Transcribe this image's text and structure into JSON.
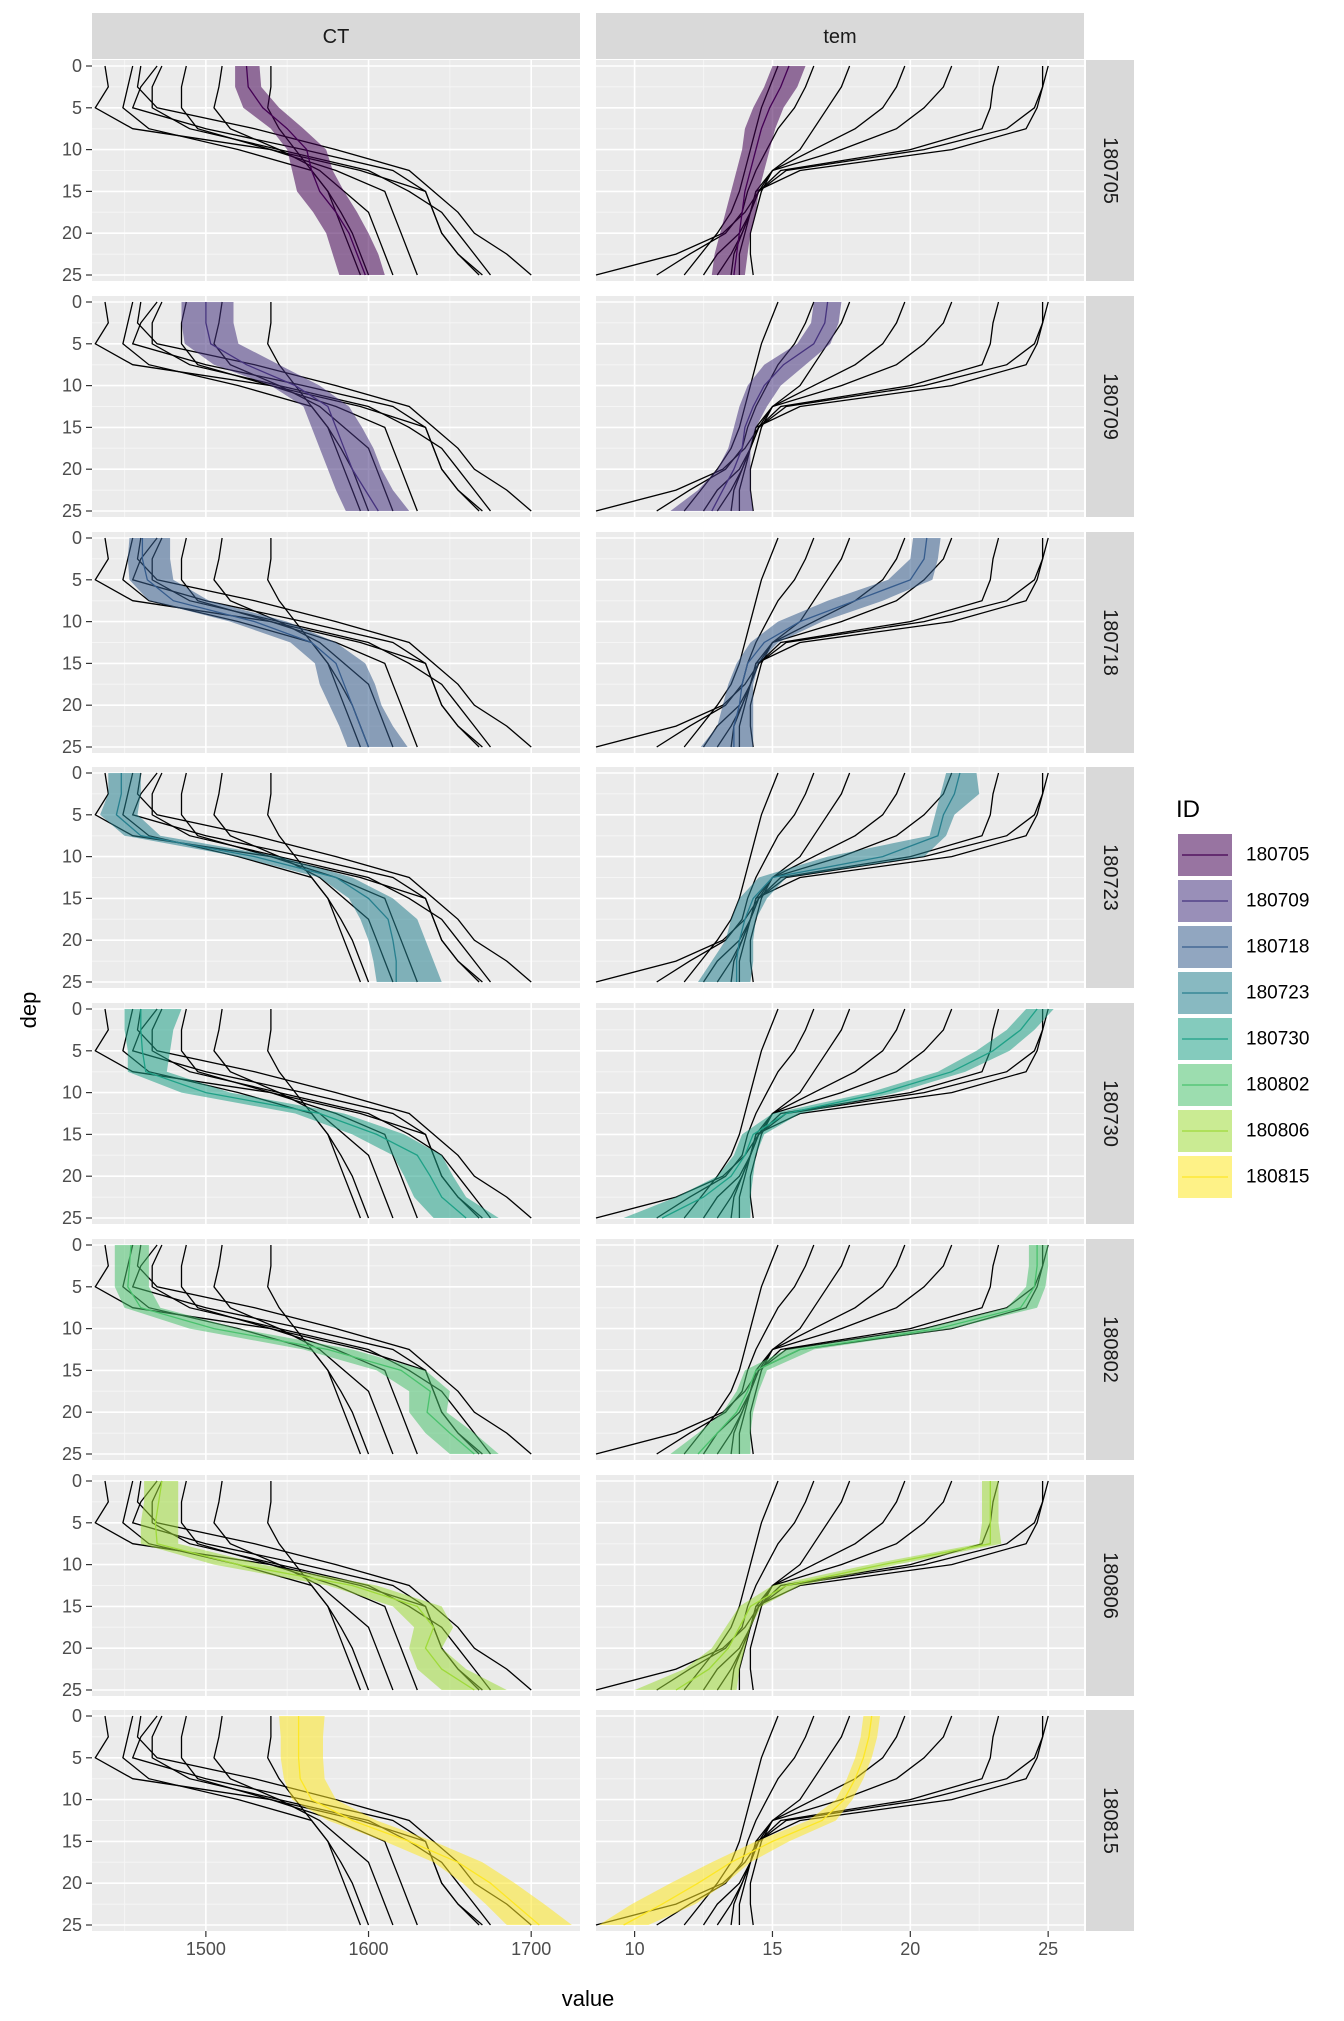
{
  "chart_data": {
    "type": "line",
    "subtype": "faceted depth profiles with ribbon bands",
    "xlabel": "value",
    "ylabel": "dep",
    "column_facets": [
      "CT",
      "tem"
    ],
    "row_facets": [
      "180705",
      "180709",
      "180718",
      "180723",
      "180730",
      "180802",
      "180806",
      "180815"
    ],
    "y_reversed": true,
    "ylim": [
      25,
      0
    ],
    "y_ticks": [
      0,
      5,
      10,
      15,
      20,
      25
    ],
    "x_axes": {
      "CT": {
        "xlim": [
          1430,
          1730
        ],
        "ticks": [
          1500,
          1600,
          1700
        ]
      },
      "tem": {
        "xlim": [
          8.6,
          26.3
        ],
        "ticks": [
          10,
          15,
          20,
          25
        ]
      }
    },
    "legend": {
      "title": "ID",
      "position": "right",
      "entries": [
        "180705",
        "180709",
        "180718",
        "180723",
        "180730",
        "180802",
        "180806",
        "180815"
      ]
    },
    "colors": {
      "180705": "#440154",
      "180709": "#46337E",
      "180718": "#365C8D",
      "180723": "#277F8E",
      "180730": "#1FA187",
      "180802": "#4AC16D",
      "180806": "#9FDA3A",
      "180815": "#FDE725"
    },
    "depths": [
      0,
      2.5,
      5,
      7.5,
      10,
      12.5,
      15,
      17.5,
      20,
      22.5,
      25
    ],
    "series": [
      {
        "name": "180705",
        "CT": {
          "mean": [
            1525,
            1526,
            1535,
            1550,
            1562,
            1565,
            1570,
            1580,
            1588,
            1593,
            1598
          ],
          "lower": [
            1518,
            1518,
            1523,
            1540,
            1550,
            1553,
            1556,
            1566,
            1574,
            1578,
            1582
          ],
          "upper": [
            1533,
            1534,
            1545,
            1560,
            1574,
            1578,
            1585,
            1593,
            1600,
            1606,
            1610
          ]
        },
        "tem": {
          "mean": [
            15.6,
            15.3,
            14.9,
            14.6,
            14.4,
            14.2,
            14.0,
            13.9,
            13.8,
            13.7,
            13.6
          ],
          "lower": [
            15.0,
            14.7,
            14.3,
            14.0,
            13.9,
            13.7,
            13.5,
            13.3,
            13.1,
            12.9,
            12.8
          ],
          "upper": [
            16.2,
            15.9,
            15.4,
            15.1,
            14.9,
            14.7,
            14.5,
            14.4,
            14.2,
            14.1,
            14.0
          ]
        }
      },
      {
        "name": "180709",
        "CT": {
          "mean": [
            1500,
            1500,
            1503,
            1525,
            1555,
            1575,
            1580,
            1585,
            1590,
            1598,
            1606
          ],
          "lower": [
            1485,
            1485,
            1487,
            1505,
            1540,
            1560,
            1565,
            1570,
            1575,
            1580,
            1586
          ],
          "upper": [
            1517,
            1517,
            1520,
            1545,
            1570,
            1588,
            1596,
            1603,
            1608,
            1615,
            1625
          ]
        },
        "tem": {
          "mean": [
            17.0,
            16.9,
            16.5,
            15.4,
            14.7,
            14.3,
            14.0,
            13.9,
            13.6,
            13.2,
            12.8
          ],
          "lower": [
            16.5,
            16.4,
            15.9,
            14.7,
            14.1,
            13.8,
            13.6,
            13.4,
            13.0,
            12.3,
            11.3
          ],
          "upper": [
            17.5,
            17.4,
            17.1,
            16.2,
            15.3,
            14.8,
            14.4,
            14.2,
            14.2,
            14.2,
            14.3
          ]
        }
      },
      {
        "name": "180718",
        "CT": {
          "mean": [
            1461,
            1461,
            1464,
            1480,
            1530,
            1565,
            1580,
            1585,
            1590,
            1595,
            1600
          ],
          "lower": [
            1453,
            1452,
            1453,
            1465,
            1515,
            1552,
            1567,
            1570,
            1576,
            1582,
            1587
          ],
          "upper": [
            1478,
            1478,
            1480,
            1502,
            1550,
            1580,
            1598,
            1604,
            1608,
            1615,
            1624
          ]
        },
        "tem": {
          "mean": [
            20.6,
            20.5,
            20.0,
            18.0,
            16.0,
            14.7,
            14.1,
            13.9,
            13.8,
            13.6,
            13.6
          ],
          "lower": [
            20.1,
            20.0,
            19.2,
            17.0,
            15.2,
            14.2,
            13.7,
            13.4,
            13.2,
            13.0,
            12.4
          ],
          "upper": [
            21.1,
            21.0,
            20.8,
            19.0,
            16.8,
            15.2,
            14.5,
            14.3,
            14.3,
            14.3,
            14.3
          ]
        }
      },
      {
        "name": "180723",
        "CT": {
          "mean": [
            1448,
            1448,
            1445,
            1460,
            1530,
            1580,
            1600,
            1612,
            1615,
            1617,
            1617
          ],
          "lower": [
            1440,
            1440,
            1435,
            1450,
            1520,
            1570,
            1588,
            1595,
            1600,
            1603,
            1605
          ],
          "upper": [
            1460,
            1460,
            1458,
            1472,
            1545,
            1590,
            1615,
            1630,
            1635,
            1640,
            1645
          ]
        },
        "tem": {
          "mean": [
            21.8,
            21.6,
            21.2,
            21.0,
            19.0,
            15.0,
            14.3,
            14.0,
            13.8,
            13.7,
            13.7
          ],
          "lower": [
            21.3,
            21.1,
            20.9,
            20.7,
            17.0,
            14.5,
            13.8,
            13.5,
            13.3,
            12.8,
            12.3
          ],
          "upper": [
            22.4,
            22.5,
            21.6,
            21.3,
            20.5,
            15.5,
            14.8,
            14.4,
            14.3,
            14.3,
            14.2
          ]
        }
      },
      {
        "name": "180730",
        "CT": {
          "mean": [
            1460,
            1460,
            1461,
            1463,
            1500,
            1570,
            1605,
            1630,
            1638,
            1645,
            1660
          ],
          "lower": [
            1450,
            1450,
            1452,
            1452,
            1485,
            1555,
            1590,
            1615,
            1622,
            1628,
            1640
          ],
          "upper": [
            1485,
            1480,
            1478,
            1476,
            1515,
            1585,
            1622,
            1645,
            1652,
            1660,
            1680
          ]
        },
        "tem": {
          "mean": [
            24.6,
            24.0,
            23.0,
            21.5,
            19.0,
            15.5,
            14.3,
            14.0,
            13.5,
            12.5,
            11.0
          ],
          "lower": [
            24.2,
            23.5,
            22.4,
            21.0,
            18.5,
            15.0,
            13.9,
            13.6,
            13.0,
            11.5,
            9.6
          ],
          "upper": [
            25.2,
            24.5,
            23.6,
            22.0,
            19.5,
            16.0,
            14.7,
            14.4,
            14.3,
            14.2,
            14.2
          ]
        }
      },
      {
        "name": "180802",
        "CT": {
          "mean": [
            1454,
            1453,
            1452,
            1460,
            1505,
            1575,
            1620,
            1638,
            1636,
            1650,
            1665
          ],
          "lower": [
            1444,
            1444,
            1444,
            1450,
            1490,
            1560,
            1605,
            1625,
            1625,
            1635,
            1650
          ],
          "upper": [
            1465,
            1465,
            1465,
            1472,
            1520,
            1590,
            1635,
            1650,
            1648,
            1665,
            1680
          ]
        },
        "tem": {
          "mean": [
            24.6,
            24.6,
            24.5,
            24.0,
            21.0,
            16.0,
            14.4,
            14.1,
            13.7,
            13.0,
            12.3
          ],
          "lower": [
            24.3,
            24.3,
            24.2,
            23.5,
            20.5,
            15.5,
            14.0,
            13.7,
            13.2,
            12.3,
            11.3
          ],
          "upper": [
            25.0,
            25.0,
            24.9,
            24.6,
            21.5,
            16.5,
            14.8,
            14.5,
            14.3,
            14.2,
            14.2
          ]
        }
      },
      {
        "name": "180806",
        "CT": {
          "mean": [
            1473,
            1471,
            1469,
            1470,
            1520,
            1590,
            1630,
            1640,
            1635,
            1645,
            1665
          ],
          "lower": [
            1462,
            1462,
            1460,
            1460,
            1505,
            1575,
            1615,
            1628,
            1625,
            1630,
            1645
          ],
          "upper": [
            1483,
            1483,
            1483,
            1483,
            1535,
            1605,
            1645,
            1652,
            1645,
            1660,
            1685
          ]
        },
        "tem": {
          "mean": [
            22.9,
            22.9,
            22.9,
            22.9,
            19.0,
            15.5,
            14.2,
            13.8,
            13.4,
            12.7,
            11.5
          ],
          "lower": [
            22.6,
            22.6,
            22.6,
            22.5,
            18.5,
            15.0,
            13.8,
            13.3,
            12.8,
            11.8,
            10.0
          ],
          "upper": [
            23.2,
            23.2,
            23.2,
            23.3,
            19.5,
            16.0,
            14.6,
            14.2,
            14.0,
            13.8,
            13.7
          ]
        }
      },
      {
        "name": "180815",
        "CT": {
          "mean": [
            1557,
            1557,
            1557,
            1558,
            1565,
            1590,
            1625,
            1655,
            1675,
            1690,
            1705
          ],
          "lower": [
            1545,
            1546,
            1546,
            1548,
            1553,
            1575,
            1610,
            1640,
            1658,
            1672,
            1685
          ],
          "upper": [
            1573,
            1572,
            1572,
            1573,
            1580,
            1605,
            1640,
            1670,
            1690,
            1708,
            1725
          ]
        },
        "tem": {
          "mean": [
            18.6,
            18.5,
            18.3,
            18.0,
            17.6,
            16.8,
            15.0,
            13.5,
            12.3,
            11.0,
            9.6
          ],
          "lower": [
            18.3,
            18.2,
            18.0,
            17.7,
            17.3,
            16.3,
            14.4,
            12.8,
            11.3,
            9.9,
            8.7
          ],
          "upper": [
            18.9,
            18.8,
            18.6,
            18.3,
            17.9,
            17.3,
            15.6,
            14.2,
            13.3,
            12.2,
            10.5
          ]
        }
      }
    ],
    "background_profiles": {
      "CT": [
        [
          1460,
          1458,
          1470,
          1530,
          1580,
          1625,
          1640,
          1655,
          1665,
          1685,
          1700
        ],
        [
          1473,
          1467,
          1467,
          1490,
          1545,
          1600,
          1625,
          1645,
          1655,
          1665,
          1675
        ],
        [
          1470,
          1460,
          1455,
          1500,
          1560,
          1615,
          1635,
          1640,
          1645,
          1655,
          1670
        ],
        [
          1488,
          1485,
          1485,
          1495,
          1540,
          1595,
          1635,
          1640,
          1645,
          1655,
          1668
        ],
        [
          1438,
          1440,
          1432,
          1455,
          1540,
          1580,
          1610,
          1615,
          1620,
          1625,
          1630
        ],
        [
          1510,
          1508,
          1505,
          1515,
          1545,
          1570,
          1585,
          1600,
          1605,
          1610,
          1615
        ],
        [
          1540,
          1540,
          1538,
          1545,
          1555,
          1565,
          1575,
          1583,
          1590,
          1595,
          1600
        ],
        [
          1455,
          1452,
          1449,
          1465,
          1520,
          1565,
          1575,
          1580,
          1585,
          1590,
          1595
        ]
      ],
      "tem": [
        [
          25.0,
          24.8,
          24.5,
          23.5,
          20.5,
          15.5,
          14.5,
          14.0,
          13.2,
          11.5,
          8.6
        ],
        [
          24.8,
          24.8,
          24.6,
          24.2,
          21.5,
          16.0,
          14.4,
          14.2,
          13.8,
          13.0,
          12.5
        ],
        [
          23.2,
          23.0,
          22.9,
          22.6,
          20.0,
          15.3,
          14.5,
          14.2,
          13.9,
          13.5,
          13.0
        ],
        [
          21.5,
          21.2,
          20.5,
          19.5,
          17.5,
          15.0,
          14.5,
          14.2,
          13.9,
          13.6,
          13.5
        ],
        [
          19.8,
          19.5,
          19.0,
          18.0,
          16.5,
          15.0,
          14.4,
          14.2,
          14.0,
          13.8,
          13.8
        ],
        [
          17.8,
          17.5,
          17.0,
          16.5,
          16.0,
          15.0,
          14.6,
          14.4,
          14.2,
          14.2,
          14.3
        ],
        [
          16.5,
          16.2,
          15.8,
          15.2,
          14.8,
          14.4,
          14.1,
          13.9,
          13.3,
          12.0,
          10.8
        ],
        [
          15.2,
          14.9,
          14.6,
          14.4,
          14.2,
          14.0,
          13.8,
          13.5,
          13.0,
          12.4,
          11.8
        ]
      ]
    }
  }
}
